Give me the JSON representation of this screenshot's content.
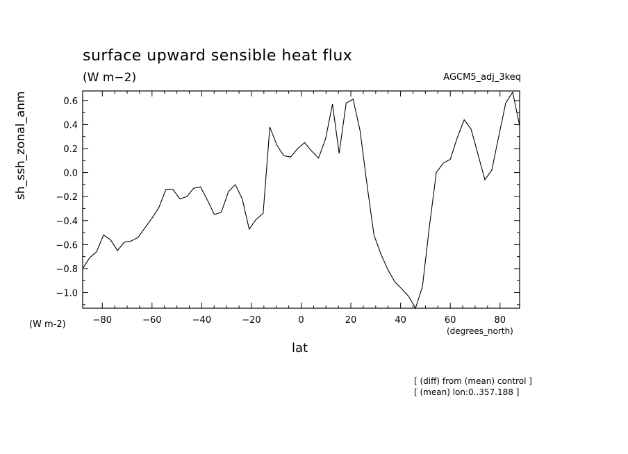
{
  "chart_data": {
    "type": "line",
    "title": "surface upward sensible heat flux",
    "unit": "(W m−2)",
    "run_name": "AGCM5_adj_3keq",
    "ylabel": "sh_ssh_zonal_anm",
    "yunit": "(W m-2)",
    "xlabel": "lat",
    "xunit": "(degrees_north)",
    "notes": [
      "[ (diff) from (mean) control ]",
      "[ (mean) lon:0..357.188 ]"
    ],
    "xlim": [
      -87.9,
      87.9
    ],
    "ylim": [
      -1.13,
      0.68
    ],
    "xticks": [
      -80,
      -60,
      -40,
      -20,
      0,
      20,
      40,
      60,
      80
    ],
    "xtick_labels": [
      "−80",
      "−60",
      "−40",
      "−20",
      "0",
      "20",
      "40",
      "60",
      "80"
    ],
    "yticks": [
      0.6,
      0.4,
      0.2,
      0.0,
      -0.2,
      -0.4,
      -0.6,
      -0.8,
      -1.0
    ],
    "ytick_labels": [
      "0.6",
      "0.4",
      "0.2",
      "0.0",
      "−0.2",
      "−0.4",
      "−0.6",
      "−0.8",
      "−1.0"
    ],
    "grid": false,
    "series": [
      {
        "x": [
          -87.9,
          -85.1,
          -82.3,
          -79.5,
          -76.7,
          -73.9,
          -71.2,
          -68.4,
          -65.6,
          -62.8,
          -60.0,
          -57.2,
          -54.4,
          -51.6,
          -48.8,
          -46.0,
          -43.2,
          -40.5,
          -37.7,
          -34.9,
          -32.1,
          -29.3,
          -26.5,
          -23.7,
          -20.9,
          -18.1,
          -15.3,
          -12.6,
          -9.8,
          -7.0,
          -4.2,
          -1.4,
          1.4,
          4.2,
          7.0,
          9.8,
          12.6,
          15.3,
          18.1,
          20.9,
          23.7,
          26.5,
          29.3,
          32.1,
          34.9,
          37.7,
          40.5,
          43.2,
          46.0,
          48.8,
          51.6,
          54.4,
          57.2,
          60.0,
          62.8,
          65.6,
          68.4,
          71.2,
          73.9,
          76.7,
          79.5,
          82.3,
          85.1,
          87.9
        ],
        "y": [
          -0.8,
          -0.71,
          -0.66,
          -0.52,
          -0.56,
          -0.65,
          -0.58,
          -0.57,
          -0.54,
          -0.46,
          -0.38,
          -0.29,
          -0.14,
          -0.14,
          -0.22,
          -0.2,
          -0.13,
          -0.12,
          -0.23,
          -0.35,
          -0.33,
          -0.16,
          -0.1,
          -0.22,
          -0.47,
          -0.39,
          -0.34,
          0.38,
          0.23,
          0.14,
          0.13,
          0.2,
          0.25,
          0.18,
          0.12,
          0.28,
          0.57,
          0.16,
          0.58,
          0.61,
          0.35,
          -0.1,
          -0.52,
          -0.68,
          -0.81,
          -0.91,
          -0.97,
          -1.03,
          -1.13,
          -0.95,
          -0.45,
          0.0,
          0.08,
          0.11,
          0.29,
          0.44,
          0.36,
          0.15,
          -0.06,
          0.02,
          0.3,
          0.58,
          0.67,
          0.39
        ]
      }
    ]
  }
}
